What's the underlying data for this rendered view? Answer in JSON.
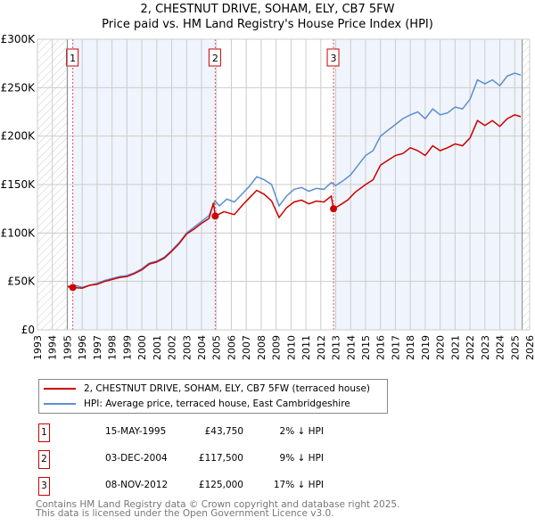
{
  "chart_data": {
    "type": "line",
    "title": "2, CHESTNUT DRIVE, SOHAM, ELY, CB7 5FW",
    "subtitle": "Price paid vs. HM Land Registry's House Price Index (HPI)",
    "xlim": [
      1993,
      2026
    ],
    "ylim": [
      0,
      300000
    ],
    "x_ticks": [
      "1993",
      "1994",
      "1995",
      "1996",
      "1997",
      "1998",
      "1999",
      "2000",
      "2001",
      "2002",
      "2003",
      "2004",
      "2005",
      "2006",
      "2007",
      "2008",
      "2009",
      "2010",
      "2011",
      "2012",
      "2013",
      "2014",
      "2015",
      "2016",
      "2017",
      "2018",
      "2019",
      "2020",
      "2021",
      "2022",
      "2023",
      "2024",
      "2025",
      "2026"
    ],
    "y_ticks": [
      {
        "v": 0,
        "label": "£0"
      },
      {
        "v": 50000,
        "label": "£50K"
      },
      {
        "v": 100000,
        "label": "£100K"
      },
      {
        "v": 150000,
        "label": "£150K"
      },
      {
        "v": 200000,
        "label": "£200K"
      },
      {
        "v": 250000,
        "label": "£250K"
      },
      {
        "v": 300000,
        "label": "£300K"
      }
    ],
    "grid": true,
    "series": [
      {
        "name": "HPI: Average price, terraced house, East Cambridgeshire",
        "color": "#5b8fd0",
        "x": [
          1995,
          1995.5,
          1996,
          1996.5,
          1997,
          1997.5,
          1998,
          1998.5,
          1999,
          1999.5,
          2000,
          2000.5,
          2001,
          2001.5,
          2002,
          2002.5,
          2003,
          2003.5,
          2004,
          2004.5,
          2004.9,
          2005.2,
          2005.7,
          2006.2,
          2006.7,
          2007.2,
          2007.7,
          2008.2,
          2008.7,
          2009.2,
          2009.7,
          2010.2,
          2010.7,
          2011.2,
          2011.7,
          2012.2,
          2012.7,
          2013,
          2013.5,
          2014,
          2014.5,
          2015,
          2015.5,
          2016,
          2016.5,
          2017,
          2017.5,
          2018,
          2018.5,
          2019,
          2019.5,
          2020,
          2020.5,
          2021,
          2021.5,
          2022,
          2022.5,
          2023,
          2023.5,
          2024,
          2024.5,
          2025,
          2025.4
        ],
        "y": [
          45000,
          46000,
          44000,
          46000,
          48000,
          51000,
          53000,
          55000,
          56000,
          59000,
          63000,
          69000,
          71000,
          75000,
          82000,
          90000,
          100000,
          106000,
          112000,
          118000,
          133000,
          128000,
          135000,
          132000,
          140000,
          148000,
          158000,
          155000,
          150000,
          128000,
          138000,
          145000,
          147000,
          143000,
          146000,
          145000,
          152000,
          149000,
          154000,
          160000,
          170000,
          180000,
          185000,
          200000,
          206000,
          212000,
          218000,
          222000,
          225000,
          218000,
          228000,
          222000,
          224000,
          230000,
          228000,
          238000,
          258000,
          254000,
          258000,
          252000,
          262000,
          265000,
          263000
        ]
      },
      {
        "name": "2, CHESTNUT DRIVE, SOHAM, ELY, CB7 5FW (terraced house)",
        "color": "#cc0000",
        "x": [
          1995,
          1995.37,
          1996,
          1996.5,
          1997,
          1997.5,
          1998,
          1998.5,
          1999,
          1999.5,
          2000,
          2000.5,
          2001,
          2001.5,
          2002,
          2002.5,
          2003,
          2003.5,
          2004,
          2004.5,
          2004.8,
          2004.92,
          2005.5,
          2006.2,
          2006.7,
          2007.2,
          2007.7,
          2008.2,
          2008.7,
          2009.2,
          2009.7,
          2010.2,
          2010.7,
          2011.2,
          2011.7,
          2012.2,
          2012.7,
          2012.85,
          2013.2,
          2013.8,
          2014.3,
          2015,
          2015.5,
          2016,
          2016.5,
          2017,
          2017.5,
          2018,
          2018.5,
          2019,
          2019.5,
          2020,
          2020.5,
          2021,
          2021.5,
          2022,
          2022.5,
          2023,
          2023.5,
          2024,
          2024.5,
          2025,
          2025.4
        ],
        "y": [
          44500,
          43750,
          43000,
          46000,
          47000,
          50000,
          52000,
          54000,
          55000,
          58000,
          62000,
          68000,
          70000,
          74000,
          81000,
          89000,
          99000,
          104000,
          110000,
          115000,
          131000,
          117500,
          122000,
          119000,
          128000,
          136000,
          144000,
          140000,
          133000,
          116000,
          126000,
          132000,
          134000,
          130000,
          133000,
          132000,
          138000,
          125000,
          128000,
          134000,
          142000,
          150000,
          155000,
          170000,
          175000,
          180000,
          182000,
          188000,
          185000,
          180000,
          190000,
          185000,
          188000,
          192000,
          190000,
          198000,
          216000,
          211000,
          216000,
          210000,
          218000,
          222000,
          220000
        ]
      }
    ],
    "sales": [
      {
        "label": "1",
        "x": 1995.37,
        "y": 43750
      },
      {
        "label": "2",
        "x": 2004.92,
        "y": 117500
      },
      {
        "label": "3",
        "x": 2012.85,
        "y": 125000
      }
    ],
    "hatch_before": 1995,
    "hatch_after": 2025.5
  },
  "legend": {
    "property": "2, CHESTNUT DRIVE, SOHAM, ELY, CB7 5FW (terraced house)",
    "hpi": "HPI: Average price, terraced house, East Cambridgeshire"
  },
  "transactions": [
    {
      "num": "1",
      "date": "15-MAY-1995",
      "price": "£43,750",
      "hpi": "2% ↓ HPI"
    },
    {
      "num": "2",
      "date": "03-DEC-2004",
      "price": "£117,500",
      "hpi": "9% ↓ HPI"
    },
    {
      "num": "3",
      "date": "08-NOV-2012",
      "price": "£125,000",
      "hpi": "17% ↓ HPI"
    }
  ],
  "footer": {
    "line1": "Contains HM Land Registry data © Crown copyright and database right 2025.",
    "line2": "This data is licensed under the Open Government Licence v3.0."
  }
}
